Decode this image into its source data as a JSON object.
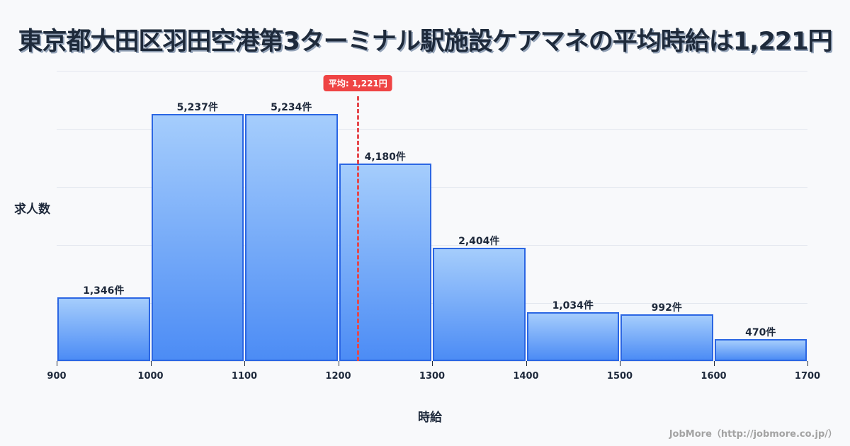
{
  "title": "東京都大田区羽田空港第3ターミナル駅施設ケアマネの平均時給は1,221円",
  "average_badge": "平均: 1,221円",
  "ylabel": "求人数",
  "xlabel": "時給",
  "credit": "JobMore（http://jobmore.co.jp/）",
  "colors": {
    "bar_fill_top": "#a5cdfc",
    "bar_fill_bottom": "#4c8cf5",
    "bar_border": "#2b66e3",
    "average_line": "#e5484d",
    "average_badge": "#ef4444",
    "background": "#f8f9fb"
  },
  "chart_data": {
    "type": "bar",
    "title": "東京都大田区羽田空港第3ターミナル駅施設ケアマネの平均時給は1,221円",
    "xlabel": "時給",
    "ylabel": "求人数",
    "bins": [
      [
        900,
        1000
      ],
      [
        1000,
        1100
      ],
      [
        1100,
        1200
      ],
      [
        1200,
        1300
      ],
      [
        1300,
        1400
      ],
      [
        1400,
        1500
      ],
      [
        1500,
        1600
      ],
      [
        1600,
        1700
      ]
    ],
    "categories": [
      "900-1000",
      "1000-1100",
      "1100-1200",
      "1200-1300",
      "1300-1400",
      "1400-1500",
      "1500-1600",
      "1600-1700"
    ],
    "values": [
      1346,
      5237,
      5234,
      4180,
      2404,
      1034,
      992,
      470
    ],
    "value_labels": [
      "1,346件",
      "5,237件",
      "5,234件",
      "4,180件",
      "2,404件",
      "1,034件",
      "992件",
      "470件"
    ],
    "x_ticks": [
      "900",
      "1000",
      "1100",
      "1200",
      "1300",
      "1400",
      "1500",
      "1600",
      "1700"
    ],
    "xlim": [
      900,
      1700
    ],
    "ylim": [
      0,
      6150
    ],
    "grid": true,
    "annotations": [
      {
        "type": "vline",
        "x": 1221,
        "label": "平均: 1,221円"
      }
    ]
  }
}
